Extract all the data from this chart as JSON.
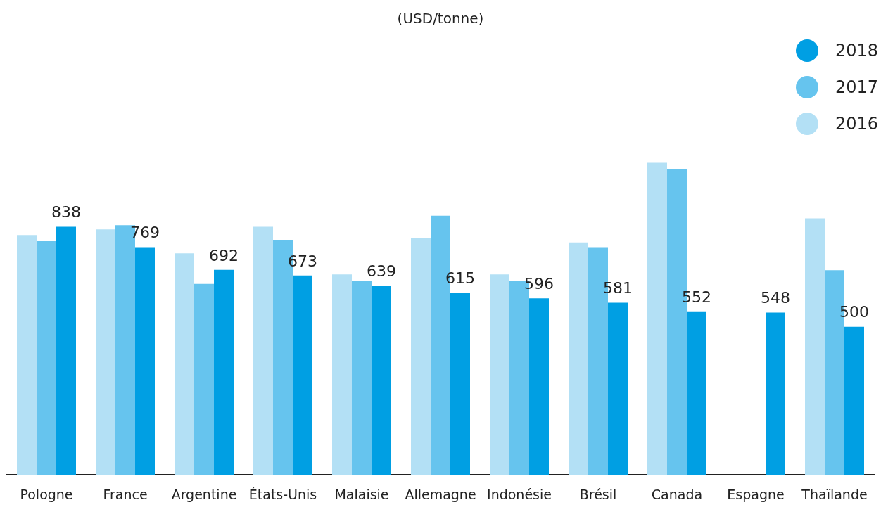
{
  "chart_data": {
    "type": "bar",
    "title": "(USD/tonne)",
    "categories": [
      "Pologne",
      "France",
      "Argentine",
      "États-Unis",
      "Malaisie",
      "Allemagne",
      "Indonésie",
      "Brésil",
      "Canada",
      "Espagne",
      "Thaïlande"
    ],
    "series": [
      {
        "name": "2016",
        "color": "#b3e0f5",
        "values": [
          810,
          829,
          748,
          838,
          677,
          801,
          677,
          785,
          1054,
          null,
          866
        ]
      },
      {
        "name": "2017",
        "color": "#66c4ee",
        "values": [
          790,
          843,
          645,
          794,
          656,
          875,
          656,
          769,
          1034,
          null,
          691
        ]
      },
      {
        "name": "2018",
        "color": "#009fe3",
        "values": [
          838,
          769,
          692,
          673,
          639,
          615,
          596,
          581,
          552,
          548,
          500
        ],
        "value_labels": [
          "838",
          "769",
          "692",
          "673",
          "639",
          "615",
          "596",
          "581",
          "552",
          "548",
          "500"
        ]
      }
    ],
    "grid": false,
    "legend": "top right"
  }
}
